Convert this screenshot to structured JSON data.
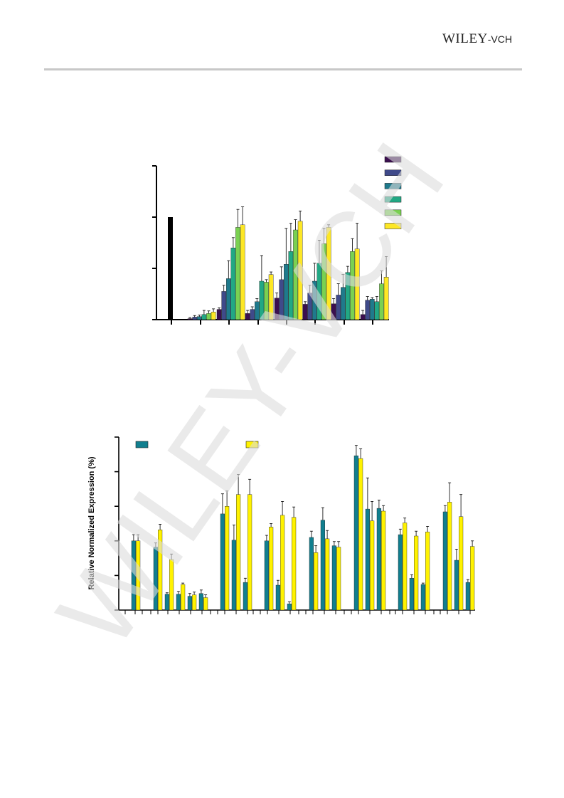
{
  "header": {
    "publisher_main": "WILEY",
    "publisher_suffix": "-VCH"
  },
  "watermark": {
    "text": "WILEY-VCH"
  },
  "colors": {
    "control": "#000000",
    "s1": "#3b0f4f",
    "s2": "#3f4a8a",
    "s3": "#1f7a8c",
    "s4": "#22a884",
    "s5": "#7ad151",
    "s6": "#fde725",
    "teal": "#117f8f",
    "yellow": "#fff200",
    "watermark": "#dcdcdc"
  },
  "chart_data": [
    {
      "type": "bar",
      "title": "",
      "xlabel": "",
      "ylabel": "",
      "ylim": [
        0,
        3
      ],
      "legend_position": "top-right",
      "legend_entries": [
        "",
        "",
        "",
        "",
        "",
        ""
      ],
      "control_value": 2.0,
      "groups": [
        [
          0.02,
          0.05,
          0.06,
          0.1,
          0.12,
          0.15
        ],
        [
          0.2,
          0.55,
          0.8,
          1.4,
          1.8,
          1.85
        ],
        [
          0.12,
          0.2,
          0.35,
          0.75,
          0.73,
          0.88
        ],
        [
          0.42,
          0.78,
          1.08,
          1.33,
          1.75,
          1.92
        ],
        [
          0.3,
          0.52,
          0.75,
          1.1,
          1.48,
          1.8
        ],
        [
          0.31,
          0.48,
          0.63,
          0.92,
          1.33,
          1.38
        ],
        [
          0.1,
          0.38,
          0.4,
          0.35,
          0.7,
          0.83
        ]
      ],
      "errors": [
        [
          0.02,
          0.03,
          0.03,
          0.08,
          0.05,
          0.06
        ],
        [
          0.03,
          0.12,
          0.35,
          0.2,
          0.35,
          0.35
        ],
        [
          0.06,
          0.05,
          0.06,
          0.5,
          0.05,
          0.05
        ],
        [
          0.1,
          0.25,
          0.7,
          0.55,
          0.2,
          0.2
        ],
        [
          0.05,
          0.15,
          0.35,
          0.45,
          0.3,
          0.05
        ],
        [
          0.1,
          0.22,
          0.25,
          0.12,
          0.25,
          0.5
        ],
        [
          0.08,
          0.07,
          0.03,
          0.1,
          0.25,
          0.4
        ]
      ]
    },
    {
      "type": "bar",
      "title": "",
      "xlabel": "",
      "ylabel": "Relative  Normalized  Expression (%)",
      "ylim": [
        0,
        250
      ],
      "legend_position": "top",
      "series_colors": [
        "teal",
        "yellow"
      ],
      "groups": [
        [
          [
            100,
            100
          ]
        ],
        [
          [
            91,
            116
          ],
          [
            23,
            73
          ],
          [
            23,
            37
          ],
          [
            20,
            22
          ],
          [
            24,
            18
          ]
        ],
        [
          [
            139,
            150
          ],
          [
            101,
            167
          ],
          [
            40,
            167
          ]
        ],
        [
          [
            100,
            120
          ],
          [
            36,
            137
          ],
          [
            9,
            134
          ]
        ],
        [
          [
            105,
            83
          ],
          [
            130,
            103
          ],
          [
            93,
            91
          ]
        ],
        [
          [
            223,
            219
          ],
          [
            146,
            129
          ],
          [
            147,
            143
          ]
        ],
        [
          [
            109,
            126
          ],
          [
            46,
            107
          ],
          [
            37,
            113
          ]
        ],
        [
          [
            142,
            156
          ],
          [
            72,
            135
          ],
          [
            40,
            92
          ]
        ]
      ],
      "errors": [
        [
          [
            9,
            9
          ]
        ],
        [
          [
            6,
            8
          ],
          [
            2,
            8
          ],
          [
            4,
            2
          ],
          [
            4,
            4
          ],
          [
            5,
            4
          ]
        ],
        [
          [
            29,
            22
          ],
          [
            22,
            29
          ],
          [
            6,
            22
          ]
        ],
        [
          [
            8,
            5
          ],
          [
            7,
            20
          ],
          [
            3,
            15
          ]
        ],
        [
          [
            9,
            10
          ],
          [
            18,
            12
          ],
          [
            6,
            8
          ]
        ],
        [
          [
            15,
            14
          ],
          [
            45,
            28
          ],
          [
            12,
            8
          ]
        ],
        [
          [
            8,
            7
          ],
          [
            5,
            7
          ],
          [
            2,
            8
          ]
        ],
        [
          [
            9,
            28
          ],
          [
            16,
            32
          ],
          [
            4,
            8
          ]
        ]
      ]
    }
  ]
}
